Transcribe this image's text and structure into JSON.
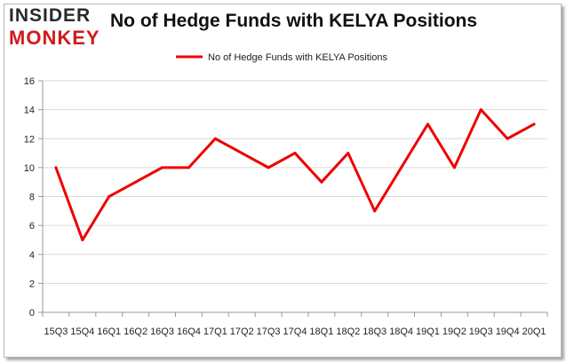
{
  "logo": {
    "top": "INSIDER",
    "bottom": "MONKEY"
  },
  "chart_data": {
    "type": "line",
    "title": "No of Hedge Funds with KELYA Positions",
    "categories": [
      "15Q3",
      "15Q4",
      "16Q1",
      "16Q2",
      "16Q3",
      "16Q4",
      "17Q1",
      "17Q2",
      "17Q3",
      "17Q4",
      "18Q1",
      "18Q2",
      "18Q3",
      "18Q4",
      "19Q1",
      "19Q2",
      "19Q3",
      "19Q4",
      "20Q1"
    ],
    "series": [
      {
        "name": "No of Hedge Funds with KELYA Positions",
        "values": [
          10,
          5,
          8,
          9,
          10,
          10,
          12,
          11,
          10,
          11,
          9,
          11,
          7,
          10,
          13,
          10,
          14,
          12,
          13
        ]
      }
    ],
    "ylim": [
      0,
      16
    ],
    "yticks": [
      0,
      2,
      4,
      6,
      8,
      10,
      12,
      14,
      16
    ],
    "grid": "horizontal",
    "legend": "top-center",
    "line_color": "#ee0000"
  }
}
